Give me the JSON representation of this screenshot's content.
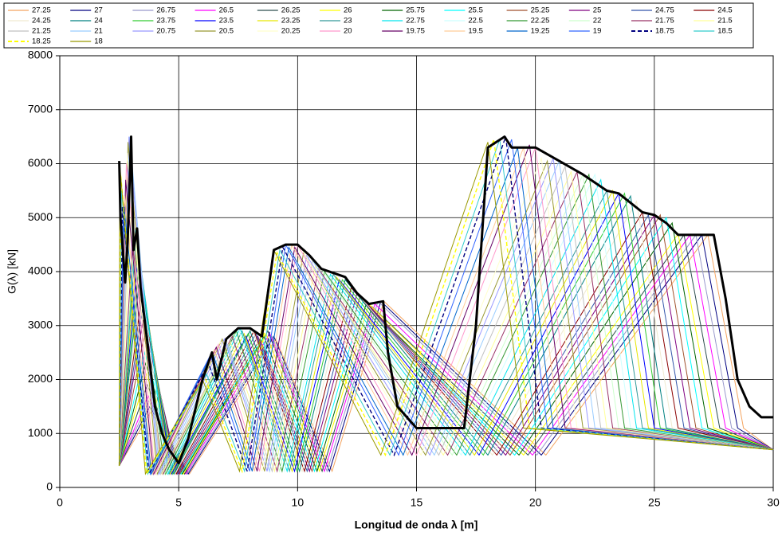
{
  "chart_data": {
    "type": "line",
    "x_label": "Longitud de onda λ [m]",
    "y_label": "G(λ) [kN]",
    "xlim": [
      0,
      30
    ],
    "xticks": [
      0,
      5,
      10,
      15,
      20,
      25,
      30
    ],
    "ylim": [
      0,
      8000
    ],
    "yticks": [
      0,
      1000,
      2000,
      3000,
      4000,
      5000,
      6000,
      7000,
      8000
    ],
    "grid": true,
    "legend": "top",
    "series": [
      {
        "name": "27.25",
        "color": "#f4a460",
        "x": [
          2.5,
          3.82,
          5.45,
          9.08,
          11.45,
          13.63,
          20.44,
          27.25,
          28.75,
          30
        ],
        "values": [
          400,
          1400,
          250,
          2750,
          300,
          3450,
          600,
          4680,
          1100,
          700
        ]
      },
      {
        "name": "27",
        "color": "#000080",
        "x": [
          2.5,
          3.78,
          5.4,
          9,
          11.34,
          13.5,
          20.25,
          27,
          28.5,
          30
        ],
        "values": [
          400,
          1500,
          250,
          2800,
          300,
          3450,
          600,
          4680,
          1100,
          700
        ]
      },
      {
        "name": "26.75",
        "color": "#9999cc",
        "x": [
          2.5,
          3.75,
          5.35,
          8.92,
          11.24,
          13.38,
          20.06,
          26.75,
          28.25,
          30
        ],
        "values": [
          400,
          1600,
          250,
          2800,
          300,
          3450,
          600,
          4680,
          1100,
          700
        ]
      },
      {
        "name": "26.5",
        "color": "#ff00ff",
        "x": [
          2.5,
          3.71,
          5.3,
          8.83,
          11.13,
          13.25,
          19.88,
          26.5,
          28,
          30
        ],
        "values": [
          400,
          1700,
          250,
          2850,
          300,
          3400,
          600,
          4680,
          1100,
          700
        ]
      },
      {
        "name": "26.25",
        "color": "#2f4f4f",
        "x": [
          2.5,
          3.68,
          5.25,
          8.75,
          11.03,
          13.13,
          19.69,
          26.25,
          27.75,
          30
        ],
        "values": [
          400,
          1900,
          250,
          2900,
          300,
          3350,
          600,
          4680,
          1100,
          700
        ]
      },
      {
        "name": "26",
        "color": "#ffff00",
        "x": [
          2.5,
          3.64,
          5.2,
          8.67,
          10.92,
          13,
          19.5,
          26,
          27.5,
          30
        ],
        "values": [
          400,
          2100,
          250,
          2850,
          300,
          3400,
          600,
          4700,
          1100,
          700
        ]
      },
      {
        "name": "25.75",
        "color": "#006400",
        "x": [
          2.5,
          3.61,
          5.15,
          8.58,
          10.82,
          12.88,
          19.31,
          25.75,
          27.25,
          30
        ],
        "values": [
          400,
          2300,
          250,
          2800,
          300,
          3400,
          600,
          4900,
          1100,
          700
        ]
      },
      {
        "name": "25.5",
        "color": "#00ffff",
        "x": [
          2.5,
          3.57,
          5.1,
          8.5,
          10.71,
          12.75,
          19.13,
          25.5,
          27,
          30
        ],
        "values": [
          400,
          2500,
          250,
          2750,
          300,
          3450,
          600,
          5000,
          1100,
          700
        ]
      },
      {
        "name": "25.25",
        "color": "#a0522d",
        "x": [
          2.5,
          3.54,
          5.05,
          8.42,
          10.61,
          12.63,
          18.94,
          25.25,
          26.75,
          30
        ],
        "values": [
          400,
          2800,
          250,
          2750,
          300,
          3550,
          600,
          5050,
          1100,
          700
        ]
      },
      {
        "name": "25",
        "color": "#800080",
        "x": [
          2.5,
          3.5,
          5,
          8.33,
          10.5,
          12.5,
          18.75,
          25,
          26.5,
          30
        ],
        "values": [
          400,
          3100,
          250,
          2800,
          300,
          3600,
          600,
          5050,
          1100,
          700
        ]
      },
      {
        "name": "24.75",
        "color": "#3355aa",
        "x": [
          2.5,
          3.47,
          4.95,
          8.25,
          10.4,
          12.38,
          18.56,
          24.75,
          26.25,
          30
        ],
        "values": [
          400,
          3300,
          250,
          2850,
          300,
          3650,
          600,
          5050,
          1100,
          700
        ]
      },
      {
        "name": "24.5",
        "color": "#8b0000",
        "x": [
          2.5,
          3.43,
          4.9,
          8.17,
          10.29,
          12.25,
          18.38,
          24.5,
          26,
          30
        ],
        "values": [
          400,
          3500,
          250,
          2900,
          300,
          3700,
          600,
          5100,
          1100,
          700
        ]
      },
      {
        "name": "24.25",
        "color": "#f0ead0",
        "x": [
          2.5,
          3.4,
          4.85,
          8.08,
          10.19,
          12.13,
          18.19,
          24.25,
          25.75,
          30
        ],
        "values": [
          400,
          3700,
          250,
          2950,
          300,
          3800,
          600,
          5300,
          1100,
          700
        ]
      },
      {
        "name": "24",
        "color": "#008080",
        "x": [
          2.5,
          3.36,
          4.8,
          8,
          10.08,
          12,
          18,
          24,
          25.5,
          30
        ],
        "values": [
          400,
          3900,
          250,
          2900,
          300,
          3850,
          600,
          5400,
          1100,
          700
        ]
      },
      {
        "name": "23.75",
        "color": "#33cc33",
        "x": [
          2.5,
          3.33,
          4.75,
          7.92,
          9.98,
          11.88,
          17.81,
          23.75,
          25.25,
          30
        ],
        "values": [
          400,
          4100,
          250,
          2850,
          300,
          3850,
          600,
          5450,
          1100,
          700
        ]
      },
      {
        "name": "23.5",
        "color": "#0000ff",
        "x": [
          2.5,
          3.29,
          4.7,
          7.83,
          9.87,
          11.75,
          17.63,
          23.5,
          25,
          30
        ],
        "values": [
          400,
          4300,
          250,
          2800,
          300,
          3850,
          600,
          5450,
          1100,
          700
        ]
      },
      {
        "name": "23.25",
        "color": "#e6e600",
        "x": [
          2.5,
          3.26,
          4.65,
          7.75,
          9.77,
          11.63,
          17.44,
          23.25,
          24.75,
          30
        ],
        "values": [
          400,
          4500,
          250,
          2850,
          300,
          3900,
          600,
          5500,
          1100,
          700
        ]
      },
      {
        "name": "23",
        "color": "#339999",
        "x": [
          2.5,
          3.22,
          4.6,
          7.67,
          9.66,
          11.5,
          17.25,
          23,
          24.5,
          30
        ],
        "values": [
          400,
          4700,
          250,
          2900,
          300,
          3950,
          600,
          5500,
          1100,
          700
        ]
      },
      {
        "name": "22.75",
        "color": "#00e5ee",
        "x": [
          2.5,
          3.19,
          4.55,
          7.58,
          9.56,
          11.38,
          17.06,
          22.75,
          24.25,
          30
        ],
        "values": [
          400,
          4800,
          250,
          2950,
          300,
          3950,
          600,
          5700,
          1100,
          700
        ]
      },
      {
        "name": "22.5",
        "color": "#ccffff",
        "x": [
          2.5,
          3.15,
          4.5,
          7.5,
          9.45,
          11.25,
          16.88,
          22.5,
          24,
          30
        ],
        "values": [
          400,
          4700,
          250,
          2950,
          300,
          3950,
          600,
          5800,
          1100,
          700
        ]
      },
      {
        "name": "22.25",
        "color": "#339933",
        "x": [
          2.5,
          3.12,
          4.45,
          7.42,
          9.35,
          11.13,
          16.69,
          22.25,
          23.75,
          30
        ],
        "values": [
          400,
          4500,
          250,
          2900,
          300,
          4000,
          600,
          5800,
          1100,
          700
        ]
      },
      {
        "name": "22",
        "color": "#ccffcc",
        "x": [
          2.5,
          3.08,
          4.4,
          7.33,
          9.24,
          11,
          16.5,
          22,
          23.5,
          30
        ],
        "values": [
          400,
          4300,
          250,
          2850,
          300,
          4050,
          600,
          5800,
          1100,
          700
        ]
      },
      {
        "name": "21.75",
        "color": "#993366",
        "x": [
          2.5,
          3.05,
          4.35,
          7.25,
          9.14,
          10.88,
          16.31,
          21.75,
          23.25,
          30
        ],
        "values": [
          400,
          4500,
          250,
          2800,
          300,
          4050,
          600,
          5850,
          1100,
          700
        ]
      },
      {
        "name": "21.5",
        "color": "#ffff99",
        "x": [
          2.5,
          3.01,
          4.3,
          7.17,
          9.03,
          10.75,
          16.13,
          21.5,
          23,
          30
        ],
        "values": [
          400,
          5200,
          250,
          2700,
          300,
          4100,
          600,
          5850,
          1100,
          700
        ]
      },
      {
        "name": "21.25",
        "color": "#c0c0c0",
        "x": [
          2.5,
          2.98,
          4.25,
          7.08,
          8.93,
          10.63,
          15.94,
          21.25,
          22.75,
          30
        ],
        "values": [
          400,
          6000,
          250,
          2650,
          300,
          4200,
          600,
          5950,
          1100,
          700
        ]
      },
      {
        "name": "21",
        "color": "#99ccff",
        "x": [
          2.5,
          2.94,
          4.2,
          7,
          8.82,
          10.5,
          15.75,
          21,
          22.5,
          30
        ],
        "values": [
          400,
          6500,
          250,
          2700,
          300,
          4300,
          600,
          6050,
          1100,
          700
        ]
      },
      {
        "name": "20.75",
        "color": "#9999ff",
        "x": [
          2.5,
          2.91,
          4.15,
          6.92,
          8.72,
          10.38,
          15.56,
          20.75,
          22.25,
          30
        ],
        "values": [
          400,
          6500,
          250,
          2750,
          300,
          4300,
          600,
          6100,
          1100,
          700
        ]
      },
      {
        "name": "20.5",
        "color": "#999933",
        "x": [
          2.5,
          2.87,
          4.1,
          6.83,
          8.61,
          10.25,
          15.38,
          20.5,
          22,
          30
        ],
        "values": [
          400,
          6400,
          250,
          2750,
          300,
          4350,
          600,
          6050,
          1100,
          700
        ]
      },
      {
        "name": "20.25",
        "color": "#ffffcc",
        "x": [
          2.5,
          2.84,
          4.05,
          6.75,
          8.51,
          10.13,
          15.19,
          20.25,
          21.75,
          30
        ],
        "values": [
          400,
          6200,
          250,
          2700,
          300,
          4450,
          600,
          6100,
          1100,
          700
        ]
      },
      {
        "name": "20",
        "color": "#ff99cc",
        "x": [
          2.5,
          2.8,
          4,
          6.67,
          8.4,
          10,
          15,
          20,
          21.5,
          30
        ],
        "values": [
          400,
          6000,
          250,
          2650,
          300,
          4500,
          600,
          6300,
          1100,
          700
        ]
      },
      {
        "name": "19.75",
        "color": "#660066",
        "x": [
          2.5,
          2.77,
          3.95,
          6.58,
          8.3,
          9.88,
          14.81,
          19.75,
          21.25,
          30
        ],
        "values": [
          400,
          5700,
          250,
          2600,
          300,
          4450,
          600,
          6350,
          1100,
          700
        ]
      },
      {
        "name": "19.5",
        "color": "#ffcc99",
        "x": [
          2.5,
          2.73,
          3.9,
          6.5,
          8.19,
          9.75,
          14.63,
          19.5,
          21,
          30
        ],
        "values": [
          400,
          5400,
          250,
          2550,
          300,
          4500,
          600,
          6300,
          1100,
          700
        ]
      },
      {
        "name": "19.25",
        "color": "#0066cc",
        "x": [
          2.5,
          2.7,
          3.85,
          6.42,
          8.09,
          9.63,
          14.44,
          19.25,
          20.75,
          30
        ],
        "values": [
          400,
          5200,
          250,
          2500,
          300,
          4450,
          600,
          6300,
          1100,
          700
        ]
      },
      {
        "name": "19",
        "color": "#3366ff",
        "x": [
          2.5,
          2.66,
          3.8,
          6.33,
          7.98,
          9.5,
          14.25,
          19,
          20.5,
          30
        ],
        "values": [
          400,
          5000,
          250,
          2450,
          300,
          4500,
          600,
          6450,
          1100,
          700
        ]
      },
      {
        "name": "18.75",
        "color": "#000080",
        "dash": true,
        "x": [
          2.5,
          2.63,
          3.75,
          6.25,
          7.88,
          9.38,
          14.06,
          18.75,
          20.25,
          30
        ],
        "values": [
          400,
          5200,
          250,
          2300,
          300,
          4450,
          600,
          6500,
          1100,
          700
        ]
      },
      {
        "name": "18.5",
        "color": "#33cccc",
        "x": [
          2.5,
          2.59,
          3.7,
          6.17,
          7.77,
          9.25,
          13.88,
          18.5,
          20,
          30
        ],
        "values": [
          400,
          5500,
          250,
          2100,
          300,
          4400,
          600,
          6450,
          1100,
          700
        ]
      },
      {
        "name": "18.25",
        "color": "#ffff00",
        "dash": true,
        "x": [
          2.5,
          2.56,
          3.65,
          6.08,
          7.67,
          9.13,
          13.69,
          18.25,
          19.75,
          30
        ],
        "values": [
          400,
          5800,
          250,
          2050,
          300,
          4350,
          600,
          6450,
          1100,
          700
        ]
      },
      {
        "name": "18",
        "color": "#999900",
        "x": [
          2.5,
          2.52,
          3.6,
          6,
          7.56,
          9,
          13.5,
          18,
          19.5,
          30
        ],
        "values": [
          400,
          6000,
          250,
          2000,
          300,
          4400,
          600,
          6400,
          1100,
          700
        ]
      }
    ],
    "envelope": {
      "color": "#000000",
      "x": [
        2.5,
        2.55,
        2.75,
        2.85,
        3.0,
        3.1,
        3.25,
        3.4,
        3.6,
        4.0,
        4.3,
        4.6,
        5.0,
        5.4,
        6.0,
        6.4,
        6.6,
        7.0,
        7.5,
        8.0,
        8.5,
        9.0,
        9.5,
        10.0,
        10.5,
        11.0,
        12.0,
        12.5,
        13.0,
        13.6,
        13.8,
        14.2,
        15,
        16,
        17,
        17.5,
        18,
        18.7,
        19,
        20,
        21,
        22,
        23,
        23.5,
        24.5,
        25,
        25.5,
        26,
        27,
        27.5,
        28,
        28.5,
        29,
        29.5,
        30
      ],
      "values": [
        6050,
        5000,
        3800,
        4500,
        6500,
        4400,
        4800,
        3700,
        3000,
        1500,
        1000,
        700,
        450,
        900,
        2000,
        2500,
        2000,
        2750,
        2950,
        2950,
        2800,
        4400,
        4500,
        4500,
        4300,
        4050,
        3900,
        3600,
        3400,
        3450,
        2500,
        1500,
        1100,
        1100,
        1100,
        3000,
        6300,
        6500,
        6300,
        6300,
        6050,
        5800,
        5500,
        5450,
        5100,
        5050,
        4900,
        4680,
        4680,
        4680,
        3500,
        2000,
        1500,
        1300,
        1300
      ]
    }
  }
}
